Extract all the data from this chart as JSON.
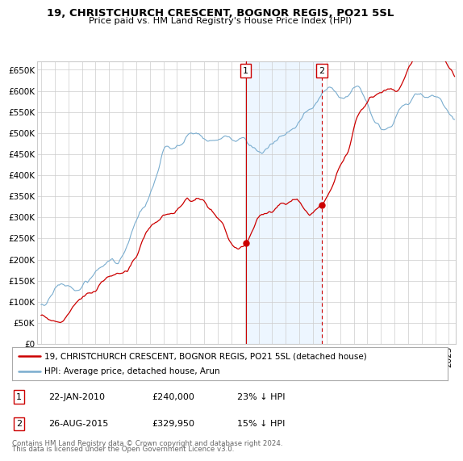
{
  "title": "19, CHRISTCHURCH CRESCENT, BOGNOR REGIS, PO21 5SL",
  "subtitle": "Price paid vs. HM Land Registry's House Price Index (HPI)",
  "legend_line1": "19, CHRISTCHURCH CRESCENT, BOGNOR REGIS, PO21 5SL (detached house)",
  "legend_line2": "HPI: Average price, detached house, Arun",
  "ann1_date": "22-JAN-2010",
  "ann1_price": "£240,000",
  "ann1_hpi": "23% ↓ HPI",
  "ann1_year": 2010.055,
  "ann1_yval": 240000,
  "ann2_date": "26-AUG-2015",
  "ann2_price": "£329,950",
  "ann2_hpi": "15% ↓ HPI",
  "ann2_year": 2015.653,
  "ann2_yval": 329950,
  "footer1": "Contains HM Land Registry data © Crown copyright and database right 2024.",
  "footer2": "This data is licensed under the Open Government Licence v3.0.",
  "red_color": "#cc0000",
  "blue_color": "#7aadcf",
  "shade_color": "#ddeeff",
  "grid_color": "#cccccc",
  "ylim_lo": 0,
  "ylim_hi": 670000,
  "ytick_step": 50000,
  "xmin": 1995.0,
  "xmax": 2025.5
}
